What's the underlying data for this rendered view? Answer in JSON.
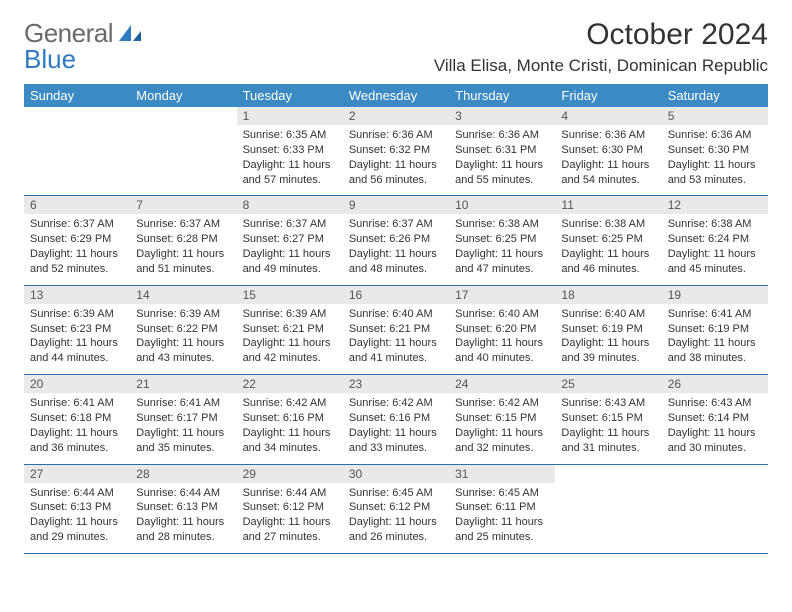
{
  "brand": {
    "word1": "General",
    "word2": "Blue"
  },
  "title": {
    "month": "October 2024",
    "location": "Villa Elisa, Monte Cristi, Dominican Republic"
  },
  "colors": {
    "header_bg": "#3b8ac4",
    "header_fg": "#ffffff",
    "daynum_bg": "#e9e9e9",
    "row_border": "#2f6da7",
    "text": "#333333",
    "brand_gray": "#6a6a6a",
    "brand_blue": "#2f7ac1"
  },
  "weekdays": [
    "Sunday",
    "Monday",
    "Tuesday",
    "Wednesday",
    "Thursday",
    "Friday",
    "Saturday"
  ],
  "weeks": [
    [
      {
        "empty": true
      },
      {
        "empty": true
      },
      {
        "num": "1",
        "sunrise": "Sunrise: 6:35 AM",
        "sunset": "Sunset: 6:33 PM",
        "day1": "Daylight: 11 hours",
        "day2": "and 57 minutes."
      },
      {
        "num": "2",
        "sunrise": "Sunrise: 6:36 AM",
        "sunset": "Sunset: 6:32 PM",
        "day1": "Daylight: 11 hours",
        "day2": "and 56 minutes."
      },
      {
        "num": "3",
        "sunrise": "Sunrise: 6:36 AM",
        "sunset": "Sunset: 6:31 PM",
        "day1": "Daylight: 11 hours",
        "day2": "and 55 minutes."
      },
      {
        "num": "4",
        "sunrise": "Sunrise: 6:36 AM",
        "sunset": "Sunset: 6:30 PM",
        "day1": "Daylight: 11 hours",
        "day2": "and 54 minutes."
      },
      {
        "num": "5",
        "sunrise": "Sunrise: 6:36 AM",
        "sunset": "Sunset: 6:30 PM",
        "day1": "Daylight: 11 hours",
        "day2": "and 53 minutes."
      }
    ],
    [
      {
        "num": "6",
        "sunrise": "Sunrise: 6:37 AM",
        "sunset": "Sunset: 6:29 PM",
        "day1": "Daylight: 11 hours",
        "day2": "and 52 minutes."
      },
      {
        "num": "7",
        "sunrise": "Sunrise: 6:37 AM",
        "sunset": "Sunset: 6:28 PM",
        "day1": "Daylight: 11 hours",
        "day2": "and 51 minutes."
      },
      {
        "num": "8",
        "sunrise": "Sunrise: 6:37 AM",
        "sunset": "Sunset: 6:27 PM",
        "day1": "Daylight: 11 hours",
        "day2": "and 49 minutes."
      },
      {
        "num": "9",
        "sunrise": "Sunrise: 6:37 AM",
        "sunset": "Sunset: 6:26 PM",
        "day1": "Daylight: 11 hours",
        "day2": "and 48 minutes."
      },
      {
        "num": "10",
        "sunrise": "Sunrise: 6:38 AM",
        "sunset": "Sunset: 6:25 PM",
        "day1": "Daylight: 11 hours",
        "day2": "and 47 minutes."
      },
      {
        "num": "11",
        "sunrise": "Sunrise: 6:38 AM",
        "sunset": "Sunset: 6:25 PM",
        "day1": "Daylight: 11 hours",
        "day2": "and 46 minutes."
      },
      {
        "num": "12",
        "sunrise": "Sunrise: 6:38 AM",
        "sunset": "Sunset: 6:24 PM",
        "day1": "Daylight: 11 hours",
        "day2": "and 45 minutes."
      }
    ],
    [
      {
        "num": "13",
        "sunrise": "Sunrise: 6:39 AM",
        "sunset": "Sunset: 6:23 PM",
        "day1": "Daylight: 11 hours",
        "day2": "and 44 minutes."
      },
      {
        "num": "14",
        "sunrise": "Sunrise: 6:39 AM",
        "sunset": "Sunset: 6:22 PM",
        "day1": "Daylight: 11 hours",
        "day2": "and 43 minutes."
      },
      {
        "num": "15",
        "sunrise": "Sunrise: 6:39 AM",
        "sunset": "Sunset: 6:21 PM",
        "day1": "Daylight: 11 hours",
        "day2": "and 42 minutes."
      },
      {
        "num": "16",
        "sunrise": "Sunrise: 6:40 AM",
        "sunset": "Sunset: 6:21 PM",
        "day1": "Daylight: 11 hours",
        "day2": "and 41 minutes."
      },
      {
        "num": "17",
        "sunrise": "Sunrise: 6:40 AM",
        "sunset": "Sunset: 6:20 PM",
        "day1": "Daylight: 11 hours",
        "day2": "and 40 minutes."
      },
      {
        "num": "18",
        "sunrise": "Sunrise: 6:40 AM",
        "sunset": "Sunset: 6:19 PM",
        "day1": "Daylight: 11 hours",
        "day2": "and 39 minutes."
      },
      {
        "num": "19",
        "sunrise": "Sunrise: 6:41 AM",
        "sunset": "Sunset: 6:19 PM",
        "day1": "Daylight: 11 hours",
        "day2": "and 38 minutes."
      }
    ],
    [
      {
        "num": "20",
        "sunrise": "Sunrise: 6:41 AM",
        "sunset": "Sunset: 6:18 PM",
        "day1": "Daylight: 11 hours",
        "day2": "and 36 minutes."
      },
      {
        "num": "21",
        "sunrise": "Sunrise: 6:41 AM",
        "sunset": "Sunset: 6:17 PM",
        "day1": "Daylight: 11 hours",
        "day2": "and 35 minutes."
      },
      {
        "num": "22",
        "sunrise": "Sunrise: 6:42 AM",
        "sunset": "Sunset: 6:16 PM",
        "day1": "Daylight: 11 hours",
        "day2": "and 34 minutes."
      },
      {
        "num": "23",
        "sunrise": "Sunrise: 6:42 AM",
        "sunset": "Sunset: 6:16 PM",
        "day1": "Daylight: 11 hours",
        "day2": "and 33 minutes."
      },
      {
        "num": "24",
        "sunrise": "Sunrise: 6:42 AM",
        "sunset": "Sunset: 6:15 PM",
        "day1": "Daylight: 11 hours",
        "day2": "and 32 minutes."
      },
      {
        "num": "25",
        "sunrise": "Sunrise: 6:43 AM",
        "sunset": "Sunset: 6:15 PM",
        "day1": "Daylight: 11 hours",
        "day2": "and 31 minutes."
      },
      {
        "num": "26",
        "sunrise": "Sunrise: 6:43 AM",
        "sunset": "Sunset: 6:14 PM",
        "day1": "Daylight: 11 hours",
        "day2": "and 30 minutes."
      }
    ],
    [
      {
        "num": "27",
        "sunrise": "Sunrise: 6:44 AM",
        "sunset": "Sunset: 6:13 PM",
        "day1": "Daylight: 11 hours",
        "day2": "and 29 minutes."
      },
      {
        "num": "28",
        "sunrise": "Sunrise: 6:44 AM",
        "sunset": "Sunset: 6:13 PM",
        "day1": "Daylight: 11 hours",
        "day2": "and 28 minutes."
      },
      {
        "num": "29",
        "sunrise": "Sunrise: 6:44 AM",
        "sunset": "Sunset: 6:12 PM",
        "day1": "Daylight: 11 hours",
        "day2": "and 27 minutes."
      },
      {
        "num": "30",
        "sunrise": "Sunrise: 6:45 AM",
        "sunset": "Sunset: 6:12 PM",
        "day1": "Daylight: 11 hours",
        "day2": "and 26 minutes."
      },
      {
        "num": "31",
        "sunrise": "Sunrise: 6:45 AM",
        "sunset": "Sunset: 6:11 PM",
        "day1": "Daylight: 11 hours",
        "day2": "and 25 minutes."
      },
      {
        "empty": true
      },
      {
        "empty": true
      }
    ]
  ]
}
